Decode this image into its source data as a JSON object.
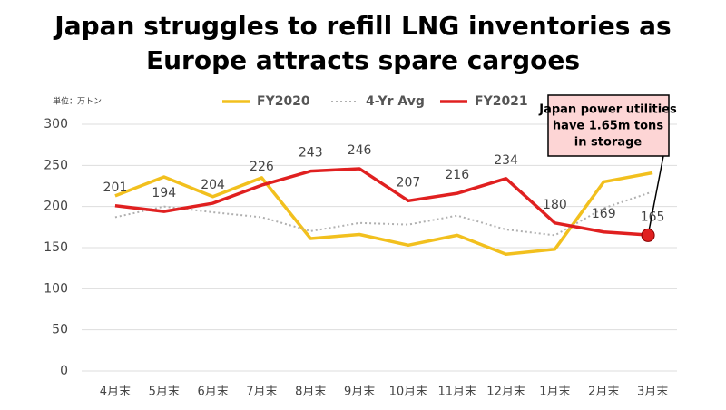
{
  "chart_data": {
    "type": "line",
    "title": "Japan struggles to refill LNG inventories as Europe attracts spare cargoes",
    "unit_label": "単位：万トン",
    "categories": [
      "4月末",
      "5月末",
      "6月末",
      "7月末",
      "8月末",
      "9月末",
      "10月末",
      "11月末",
      "12月末",
      "1月末",
      "2月末",
      "3月末"
    ],
    "series": [
      {
        "name": "FY2020",
        "color": "#f2c01e",
        "dash": "solid",
        "values": [
          213,
          236,
          212,
          235,
          161,
          166,
          153,
          165,
          142,
          148,
          230,
          241
        ]
      },
      {
        "name": "4-Yr Avg",
        "color": "#b0b0b0",
        "dash": "dotted",
        "values": [
          187,
          200,
          193,
          187,
          170,
          180,
          178,
          189,
          172,
          165,
          198,
          218
        ]
      },
      {
        "name": "FY2021",
        "color": "#e02020",
        "dash": "solid",
        "data_labels": true,
        "values": [
          201,
          194,
          204,
          226,
          243,
          246,
          207,
          216,
          234,
          180,
          169,
          165
        ]
      }
    ],
    "ylim": [
      0,
      300
    ],
    "yticks": [
      0,
      50,
      100,
      150,
      200,
      250,
      300
    ],
    "grid": true,
    "annotation": [
      "Japan power utilities",
      "have 1.65m tons",
      "in storage"
    ]
  }
}
